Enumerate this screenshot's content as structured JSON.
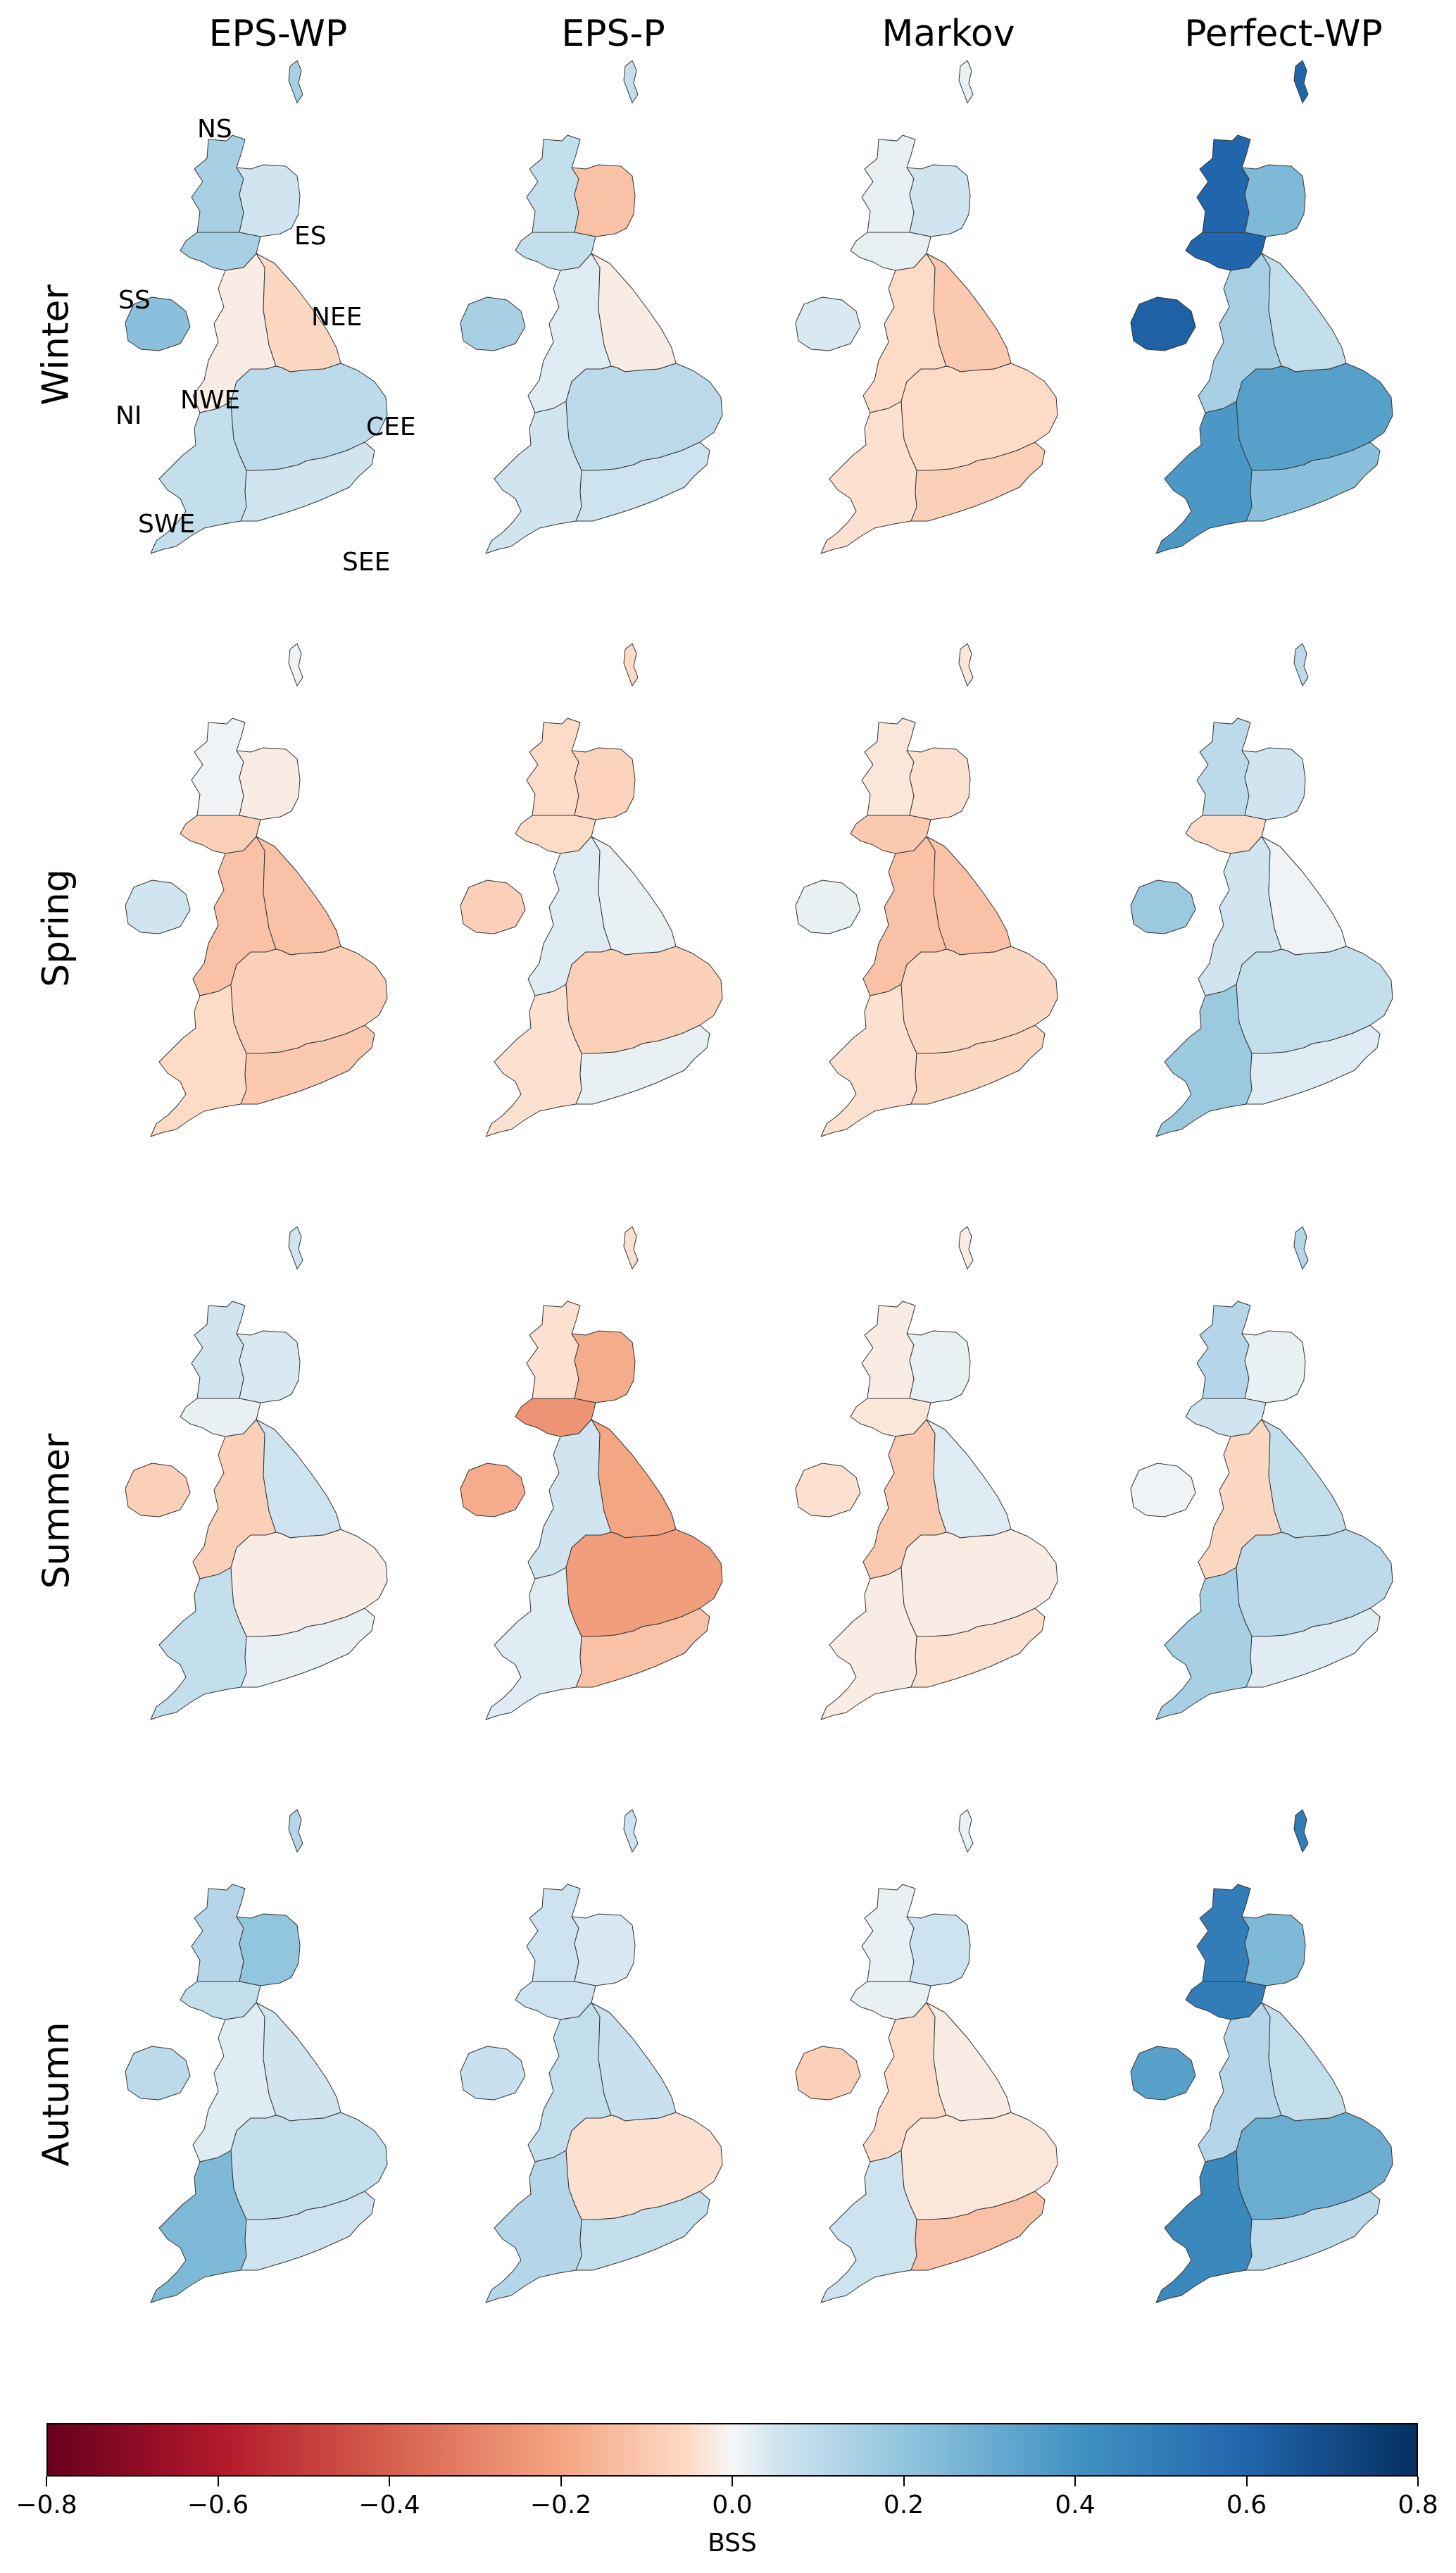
{
  "columns": [
    "EPS-WP",
    "EPS-P",
    "Markov",
    "Perfect-WP"
  ],
  "rows": [
    "Winter",
    "Spring",
    "Summer",
    "Autumn"
  ],
  "region_labels": {
    "NS": "NS",
    "ES": "ES",
    "SS": "SS",
    "NEE": "NEE",
    "NI": "NI",
    "NWE": "NWE",
    "CEE": "CEE",
    "SWE": "SWE",
    "SEE": "SEE"
  },
  "bss_values": {
    "Winter": {
      "EPS-WP": {
        "NS": 0.15,
        "ES": 0.05,
        "SS": 0.15,
        "NI": 0.22,
        "NWE": -0.02,
        "NEE": -0.06,
        "CEE": 0.1,
        "SWE": 0.08,
        "SEE": 0.05
      },
      "EPS-P": {
        "NS": 0.08,
        "ES": -0.12,
        "SS": 0.08,
        "NI": 0.15,
        "NWE": 0.03,
        "NEE": -0.02,
        "CEE": 0.1,
        "SWE": 0.05,
        "SEE": 0.06
      },
      "Markov": {
        "NS": 0.02,
        "ES": 0.05,
        "SS": 0.02,
        "NI": 0.04,
        "NWE": -0.05,
        "NEE": -0.1,
        "CEE": -0.05,
        "SWE": -0.04,
        "SEE": -0.08
      },
      "Perfect-WP": {
        "NS": 0.6,
        "ES": 0.25,
        "SS": 0.6,
        "NI": 0.62,
        "NWE": 0.15,
        "NEE": 0.08,
        "CEE": 0.35,
        "SWE": 0.38,
        "SEE": 0.22
      }
    },
    "Spring": {
      "EPS-WP": {
        "NS": 0.01,
        "ES": -0.02,
        "SS": -0.08,
        "NI": 0.05,
        "NWE": -0.12,
        "NEE": -0.12,
        "CEE": -0.08,
        "SWE": -0.05,
        "SEE": -0.1
      },
      "EPS-P": {
        "NS": -0.05,
        "ES": -0.07,
        "SS": -0.05,
        "NI": -0.08,
        "NWE": 0.03,
        "NEE": 0.02,
        "CEE": -0.08,
        "SWE": -0.04,
        "SEE": 0.02
      },
      "Markov": {
        "NS": -0.03,
        "ES": -0.04,
        "SS": -0.1,
        "NI": 0.02,
        "NWE": -0.12,
        "NEE": -0.12,
        "CEE": -0.06,
        "SWE": -0.04,
        "SEE": -0.06
      },
      "Perfect-WP": {
        "NS": 0.1,
        "ES": 0.05,
        "SS": -0.05,
        "NI": 0.18,
        "NWE": 0.05,
        "NEE": 0.01,
        "CEE": 0.08,
        "SWE": 0.18,
        "SEE": 0.03
      }
    },
    "Summer": {
      "EPS-WP": {
        "NS": 0.05,
        "ES": 0.04,
        "SS": 0.02,
        "NI": -0.08,
        "NWE": -0.08,
        "NEE": 0.06,
        "CEE": -0.02,
        "SWE": 0.08,
        "SEE": 0.02
      },
      "EPS-P": {
        "NS": -0.04,
        "ES": -0.18,
        "SS": -0.25,
        "NI": -0.18,
        "NWE": 0.05,
        "NEE": -0.2,
        "CEE": -0.22,
        "SWE": 0.03,
        "SEE": -0.12
      },
      "Markov": {
        "NS": -0.02,
        "ES": 0.02,
        "SS": -0.03,
        "NI": -0.04,
        "NWE": -0.1,
        "NEE": 0.03,
        "CEE": -0.02,
        "SWE": -0.02,
        "SEE": -0.04
      },
      "Perfect-WP": {
        "NS": 0.12,
        "ES": 0.02,
        "SS": 0.05,
        "NI": 0.01,
        "NWE": -0.06,
        "NEE": 0.08,
        "CEE": 0.1,
        "SWE": 0.15,
        "SEE": 0.03
      }
    },
    "Autumn": {
      "EPS-WP": {
        "NS": 0.12,
        "ES": 0.2,
        "SS": 0.08,
        "NI": 0.1,
        "NWE": 0.03,
        "NEE": 0.05,
        "CEE": 0.08,
        "SWE": 0.25,
        "SEE": 0.06
      },
      "EPS-P": {
        "NS": 0.06,
        "ES": 0.04,
        "SS": 0.06,
        "NI": 0.07,
        "NWE": 0.08,
        "NEE": 0.07,
        "CEE": -0.04,
        "SWE": 0.12,
        "SEE": 0.08
      },
      "Markov": {
        "NS": 0.02,
        "ES": 0.06,
        "SS": 0.02,
        "NI": -0.08,
        "NWE": -0.05,
        "NEE": -0.02,
        "CEE": -0.03,
        "SWE": 0.06,
        "SEE": -0.12
      },
      "Perfect-WP": {
        "NS": 0.5,
        "ES": 0.25,
        "SS": 0.5,
        "NI": 0.35,
        "NWE": 0.12,
        "NEE": 0.08,
        "CEE": 0.3,
        "SWE": 0.45,
        "SEE": 0.1
      }
    }
  },
  "colorbar": {
    "label": "BSS",
    "range": [
      -0.8,
      0.8
    ],
    "colormap": "RdBu",
    "ticks": [
      -0.8,
      -0.6,
      -0.4,
      -0.2,
      0.0,
      0.2,
      0.4,
      0.6,
      0.8
    ],
    "tick_labels": [
      "−0.8",
      "−0.6",
      "−0.4",
      "−0.2",
      "0.0",
      "0.2",
      "0.4",
      "0.6",
      "0.8"
    ]
  }
}
